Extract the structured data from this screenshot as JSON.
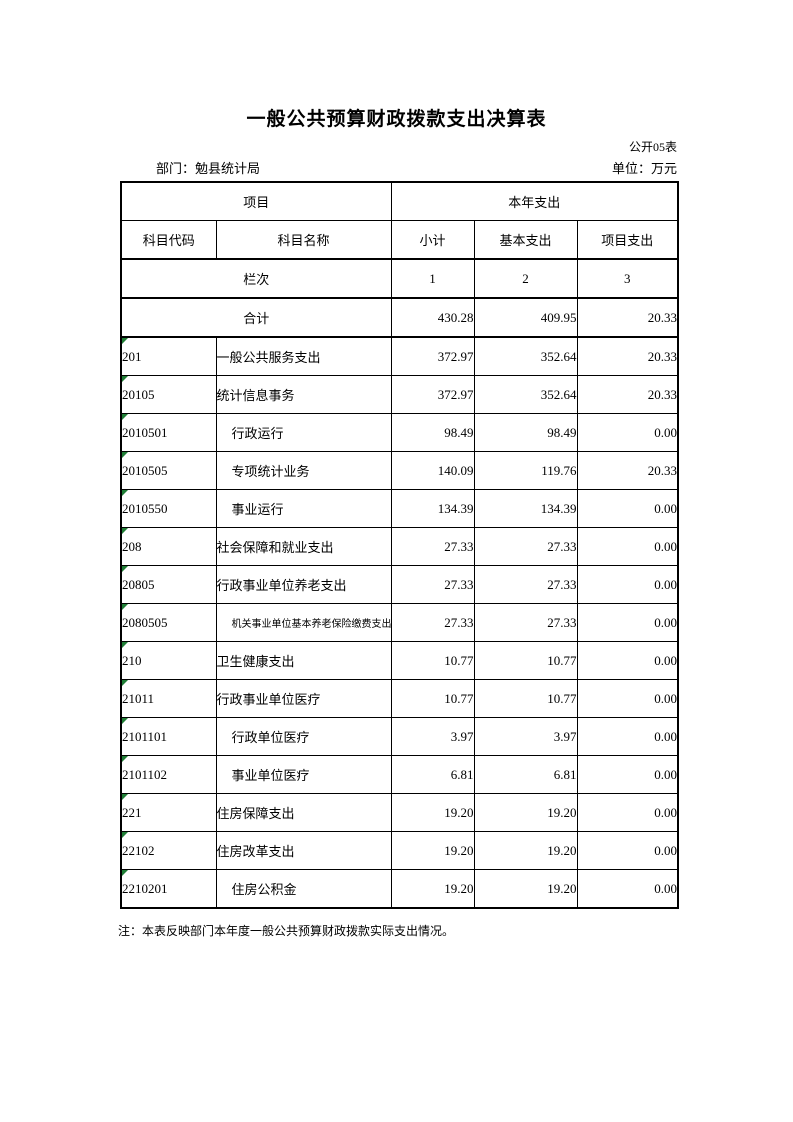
{
  "page": {
    "title": "一般公共预算财政拨款支出决算表",
    "table_code": "公开05表",
    "department_label": "部门：勉县统计局",
    "unit_label": "单位：万元",
    "note": "注：本表反映部门本年度一般公共预算财政拨款实际支出情况。"
  },
  "colors": {
    "border": "#000000",
    "triangle_green": "#1f7d35",
    "background": "#ffffff"
  },
  "table": {
    "header": {
      "project": "项目",
      "current_year": "本年支出",
      "code": "科目代码",
      "name": "科目名称",
      "subtotal": "小计",
      "basic": "基本支出",
      "project_exp": "项目支出",
      "column_index_label": "栏次",
      "col_numbers": [
        "1",
        "2",
        "3"
      ]
    },
    "total_row": {
      "label": "合计",
      "subtotal": "430.28",
      "basic": "409.95",
      "project": "20.33"
    },
    "rows": [
      {
        "code": "201",
        "name": "一般公共服务支出",
        "level": 0,
        "small": false,
        "subtotal": "372.97",
        "basic": "352.64",
        "project": "20.33"
      },
      {
        "code": "20105",
        "name": "统计信息事务",
        "level": 0,
        "small": false,
        "subtotal": "372.97",
        "basic": "352.64",
        "project": "20.33"
      },
      {
        "code": "2010501",
        "name": "行政运行",
        "level": 1,
        "small": false,
        "subtotal": "98.49",
        "basic": "98.49",
        "project": "0.00"
      },
      {
        "code": "2010505",
        "name": "专项统计业务",
        "level": 1,
        "small": false,
        "subtotal": "140.09",
        "basic": "119.76",
        "project": "20.33"
      },
      {
        "code": "2010550",
        "name": "事业运行",
        "level": 1,
        "small": false,
        "subtotal": "134.39",
        "basic": "134.39",
        "project": "0.00"
      },
      {
        "code": "208",
        "name": "社会保障和就业支出",
        "level": 0,
        "small": false,
        "subtotal": "27.33",
        "basic": "27.33",
        "project": "0.00"
      },
      {
        "code": "20805",
        "name": "行政事业单位养老支出",
        "level": 0,
        "small": false,
        "subtotal": "27.33",
        "basic": "27.33",
        "project": "0.00"
      },
      {
        "code": "2080505",
        "name": "机关事业单位基本养老保险缴费支出",
        "level": 1,
        "small": true,
        "subtotal": "27.33",
        "basic": "27.33",
        "project": "0.00"
      },
      {
        "code": "210",
        "name": "卫生健康支出",
        "level": 0,
        "small": false,
        "subtotal": "10.77",
        "basic": "10.77",
        "project": "0.00"
      },
      {
        "code": "21011",
        "name": "行政事业单位医疗",
        "level": 0,
        "small": false,
        "subtotal": "10.77",
        "basic": "10.77",
        "project": "0.00"
      },
      {
        "code": "2101101",
        "name": "行政单位医疗",
        "level": 1,
        "small": false,
        "subtotal": "3.97",
        "basic": "3.97",
        "project": "0.00"
      },
      {
        "code": "2101102",
        "name": "事业单位医疗",
        "level": 1,
        "small": false,
        "subtotal": "6.81",
        "basic": "6.81",
        "project": "0.00"
      },
      {
        "code": "221",
        "name": "住房保障支出",
        "level": 0,
        "small": false,
        "subtotal": "19.20",
        "basic": "19.20",
        "project": "0.00"
      },
      {
        "code": "22102",
        "name": "住房改革支出",
        "level": 0,
        "small": false,
        "subtotal": "19.20",
        "basic": "19.20",
        "project": "0.00"
      },
      {
        "code": "2210201",
        "name": "住房公积金",
        "level": 1,
        "small": false,
        "subtotal": "19.20",
        "basic": "19.20",
        "project": "0.00"
      }
    ]
  }
}
